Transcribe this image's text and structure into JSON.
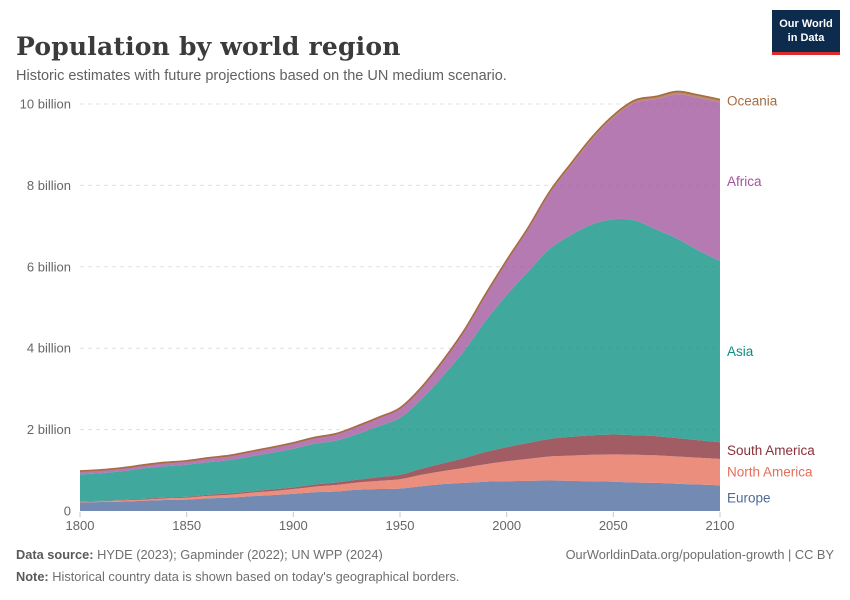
{
  "header": {
    "title": "Population by world region",
    "subtitle": "Historic estimates with future projections based on the UN medium scenario.",
    "logo": {
      "line1": "Our World",
      "line2": "in Data",
      "bg": "#0d2b4d",
      "accent": "#dd2a2c"
    }
  },
  "footer": {
    "source_label": "Data source:",
    "source_text": " HYDE (2023); Gapminder (2022); UN WPP (2024)",
    "note_label": "Note:",
    "note_text": " Historical country data is shown based on today's geographical borders.",
    "link": "OurWorldinData.org/population-growth | CC BY"
  },
  "chart_data": {
    "type": "area",
    "stacked": true,
    "title": "Population by world region",
    "xlabel": "",
    "ylabel": "",
    "unit": "billion people",
    "xlim": [
      1800,
      2100
    ],
    "ylim": [
      0,
      10.4
    ],
    "grid": "horizontal dashed",
    "legend_position": "right-edge labels",
    "x_ticks": [
      1800,
      1850,
      1900,
      1950,
      2000,
      2050,
      2100
    ],
    "y_ticks": [
      {
        "value": 0,
        "label": "0"
      },
      {
        "value": 2,
        "label": "2 billion"
      },
      {
        "value": 4,
        "label": "4 billion"
      },
      {
        "value": 6,
        "label": "6 billion"
      },
      {
        "value": 8,
        "label": "8 billion"
      },
      {
        "value": 10,
        "label": "10 billion"
      }
    ],
    "x": [
      1800,
      1810,
      1820,
      1830,
      1840,
      1850,
      1860,
      1870,
      1880,
      1890,
      1900,
      1910,
      1920,
      1930,
      1940,
      1950,
      1960,
      1970,
      1980,
      1990,
      2000,
      2010,
      2020,
      2030,
      2040,
      2050,
      2060,
      2070,
      2080,
      2090,
      2100
    ],
    "series_note": "values in billions, stacked bottom-to-top",
    "series": [
      {
        "name": "Europe",
        "color": "#4C6A9C",
        "values": [
          0.21,
          0.22,
          0.23,
          0.25,
          0.27,
          0.28,
          0.31,
          0.33,
          0.36,
          0.39,
          0.42,
          0.46,
          0.48,
          0.52,
          0.54,
          0.55,
          0.61,
          0.66,
          0.69,
          0.72,
          0.73,
          0.74,
          0.75,
          0.74,
          0.73,
          0.72,
          0.7,
          0.69,
          0.67,
          0.65,
          0.63
        ]
      },
      {
        "name": "North America",
        "color": "#E56E5A",
        "values": [
          0.02,
          0.02,
          0.03,
          0.03,
          0.04,
          0.05,
          0.06,
          0.07,
          0.09,
          0.1,
          0.12,
          0.14,
          0.16,
          0.18,
          0.2,
          0.23,
          0.28,
          0.32,
          0.37,
          0.43,
          0.49,
          0.54,
          0.59,
          0.62,
          0.65,
          0.67,
          0.68,
          0.68,
          0.67,
          0.66,
          0.65
        ]
      },
      {
        "name": "South America",
        "color": "#883039",
        "values": [
          0.01,
          0.01,
          0.01,
          0.02,
          0.02,
          0.02,
          0.03,
          0.03,
          0.03,
          0.04,
          0.04,
          0.05,
          0.06,
          0.07,
          0.09,
          0.11,
          0.15,
          0.19,
          0.24,
          0.3,
          0.35,
          0.39,
          0.43,
          0.46,
          0.48,
          0.49,
          0.48,
          0.47,
          0.45,
          0.43,
          0.41
        ]
      },
      {
        "name": "Asia",
        "color": "#0A8F80",
        "values": [
          0.66,
          0.68,
          0.71,
          0.75,
          0.77,
          0.79,
          0.8,
          0.82,
          0.86,
          0.9,
          0.95,
          1.0,
          1.03,
          1.12,
          1.25,
          1.4,
          1.7,
          2.14,
          2.63,
          3.21,
          3.74,
          4.21,
          4.66,
          4.96,
          5.18,
          5.29,
          5.28,
          5.08,
          4.9,
          4.66,
          4.45
        ]
      },
      {
        "name": "Africa",
        "color": "#A2559C",
        "values": [
          0.08,
          0.08,
          0.08,
          0.08,
          0.09,
          0.09,
          0.1,
          0.11,
          0.12,
          0.13,
          0.14,
          0.15,
          0.16,
          0.19,
          0.21,
          0.23,
          0.28,
          0.36,
          0.48,
          0.63,
          0.82,
          1.04,
          1.36,
          1.7,
          2.09,
          2.49,
          2.89,
          3.2,
          3.55,
          3.75,
          3.9
        ]
      },
      {
        "name": "Oceania",
        "color": "#A86B42",
        "values": [
          0.002,
          0.002,
          0.002,
          0.002,
          0.003,
          0.003,
          0.004,
          0.004,
          0.005,
          0.005,
          0.006,
          0.007,
          0.009,
          0.01,
          0.011,
          0.013,
          0.016,
          0.02,
          0.023,
          0.027,
          0.031,
          0.037,
          0.044,
          0.049,
          0.054,
          0.058,
          0.061,
          0.064,
          0.066,
          0.068,
          0.069
        ]
      }
    ]
  }
}
